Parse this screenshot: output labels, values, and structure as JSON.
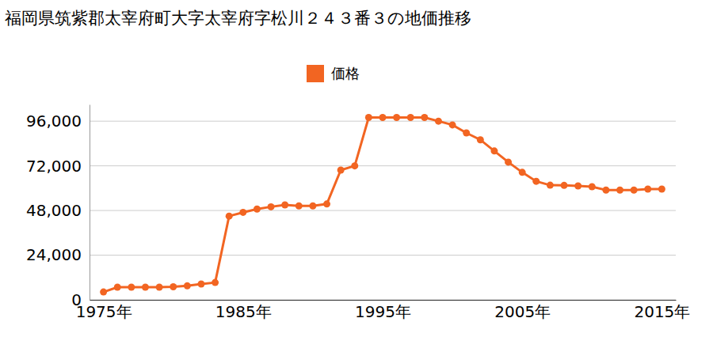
{
  "chart_data": {
    "type": "line",
    "title": "福岡県筑紫郡太宰府町大字太宰府字松川２４３番３の地価推移",
    "x": [
      1975,
      1976,
      1977,
      1978,
      1979,
      1980,
      1981,
      1982,
      1983,
      1984,
      1985,
      1986,
      1987,
      1988,
      1989,
      1990,
      1991,
      1992,
      1993,
      1994,
      1995,
      1996,
      1997,
      1998,
      1999,
      2000,
      2001,
      2002,
      2003,
      2004,
      2005,
      2006,
      2007,
      2008,
      2009,
      2010,
      2011,
      2012,
      2013,
      2014,
      2015
    ],
    "series": [
      {
        "name": "価格",
        "color": "#f26522",
        "marker": "circle",
        "line_style": "solid",
        "values": [
          4200,
          6800,
          6800,
          6800,
          6800,
          7000,
          7500,
          8500,
          9300,
          45000,
          47000,
          48800,
          50000,
          51000,
          50500,
          50500,
          51500,
          69700,
          72000,
          98000,
          98000,
          98000,
          98000,
          98000,
          96000,
          94000,
          89700,
          86000,
          80000,
          74000,
          68500,
          63700,
          61600,
          61500,
          61200,
          60800,
          59000,
          59000,
          59000,
          59500,
          59500
        ]
      }
    ],
    "xlim": [
      1974,
      2016
    ],
    "xticks": [
      {
        "value": 1975,
        "label": "1975年"
      },
      {
        "value": 1985,
        "label": "1985年"
      },
      {
        "value": 1995,
        "label": "1995年"
      },
      {
        "value": 2005,
        "label": "2005年"
      },
      {
        "value": 2015,
        "label": "2015年"
      }
    ],
    "ylim": [
      0,
      105000
    ],
    "yticks": [
      0,
      {
        "value": 24000,
        "label": "24,000"
      },
      {
        "value": 48000,
        "label": "48,000"
      },
      {
        "value": 72000,
        "label": "72,000"
      },
      {
        "value": 96000,
        "label": "96,000"
      }
    ],
    "grid": true,
    "legend": "top"
  }
}
